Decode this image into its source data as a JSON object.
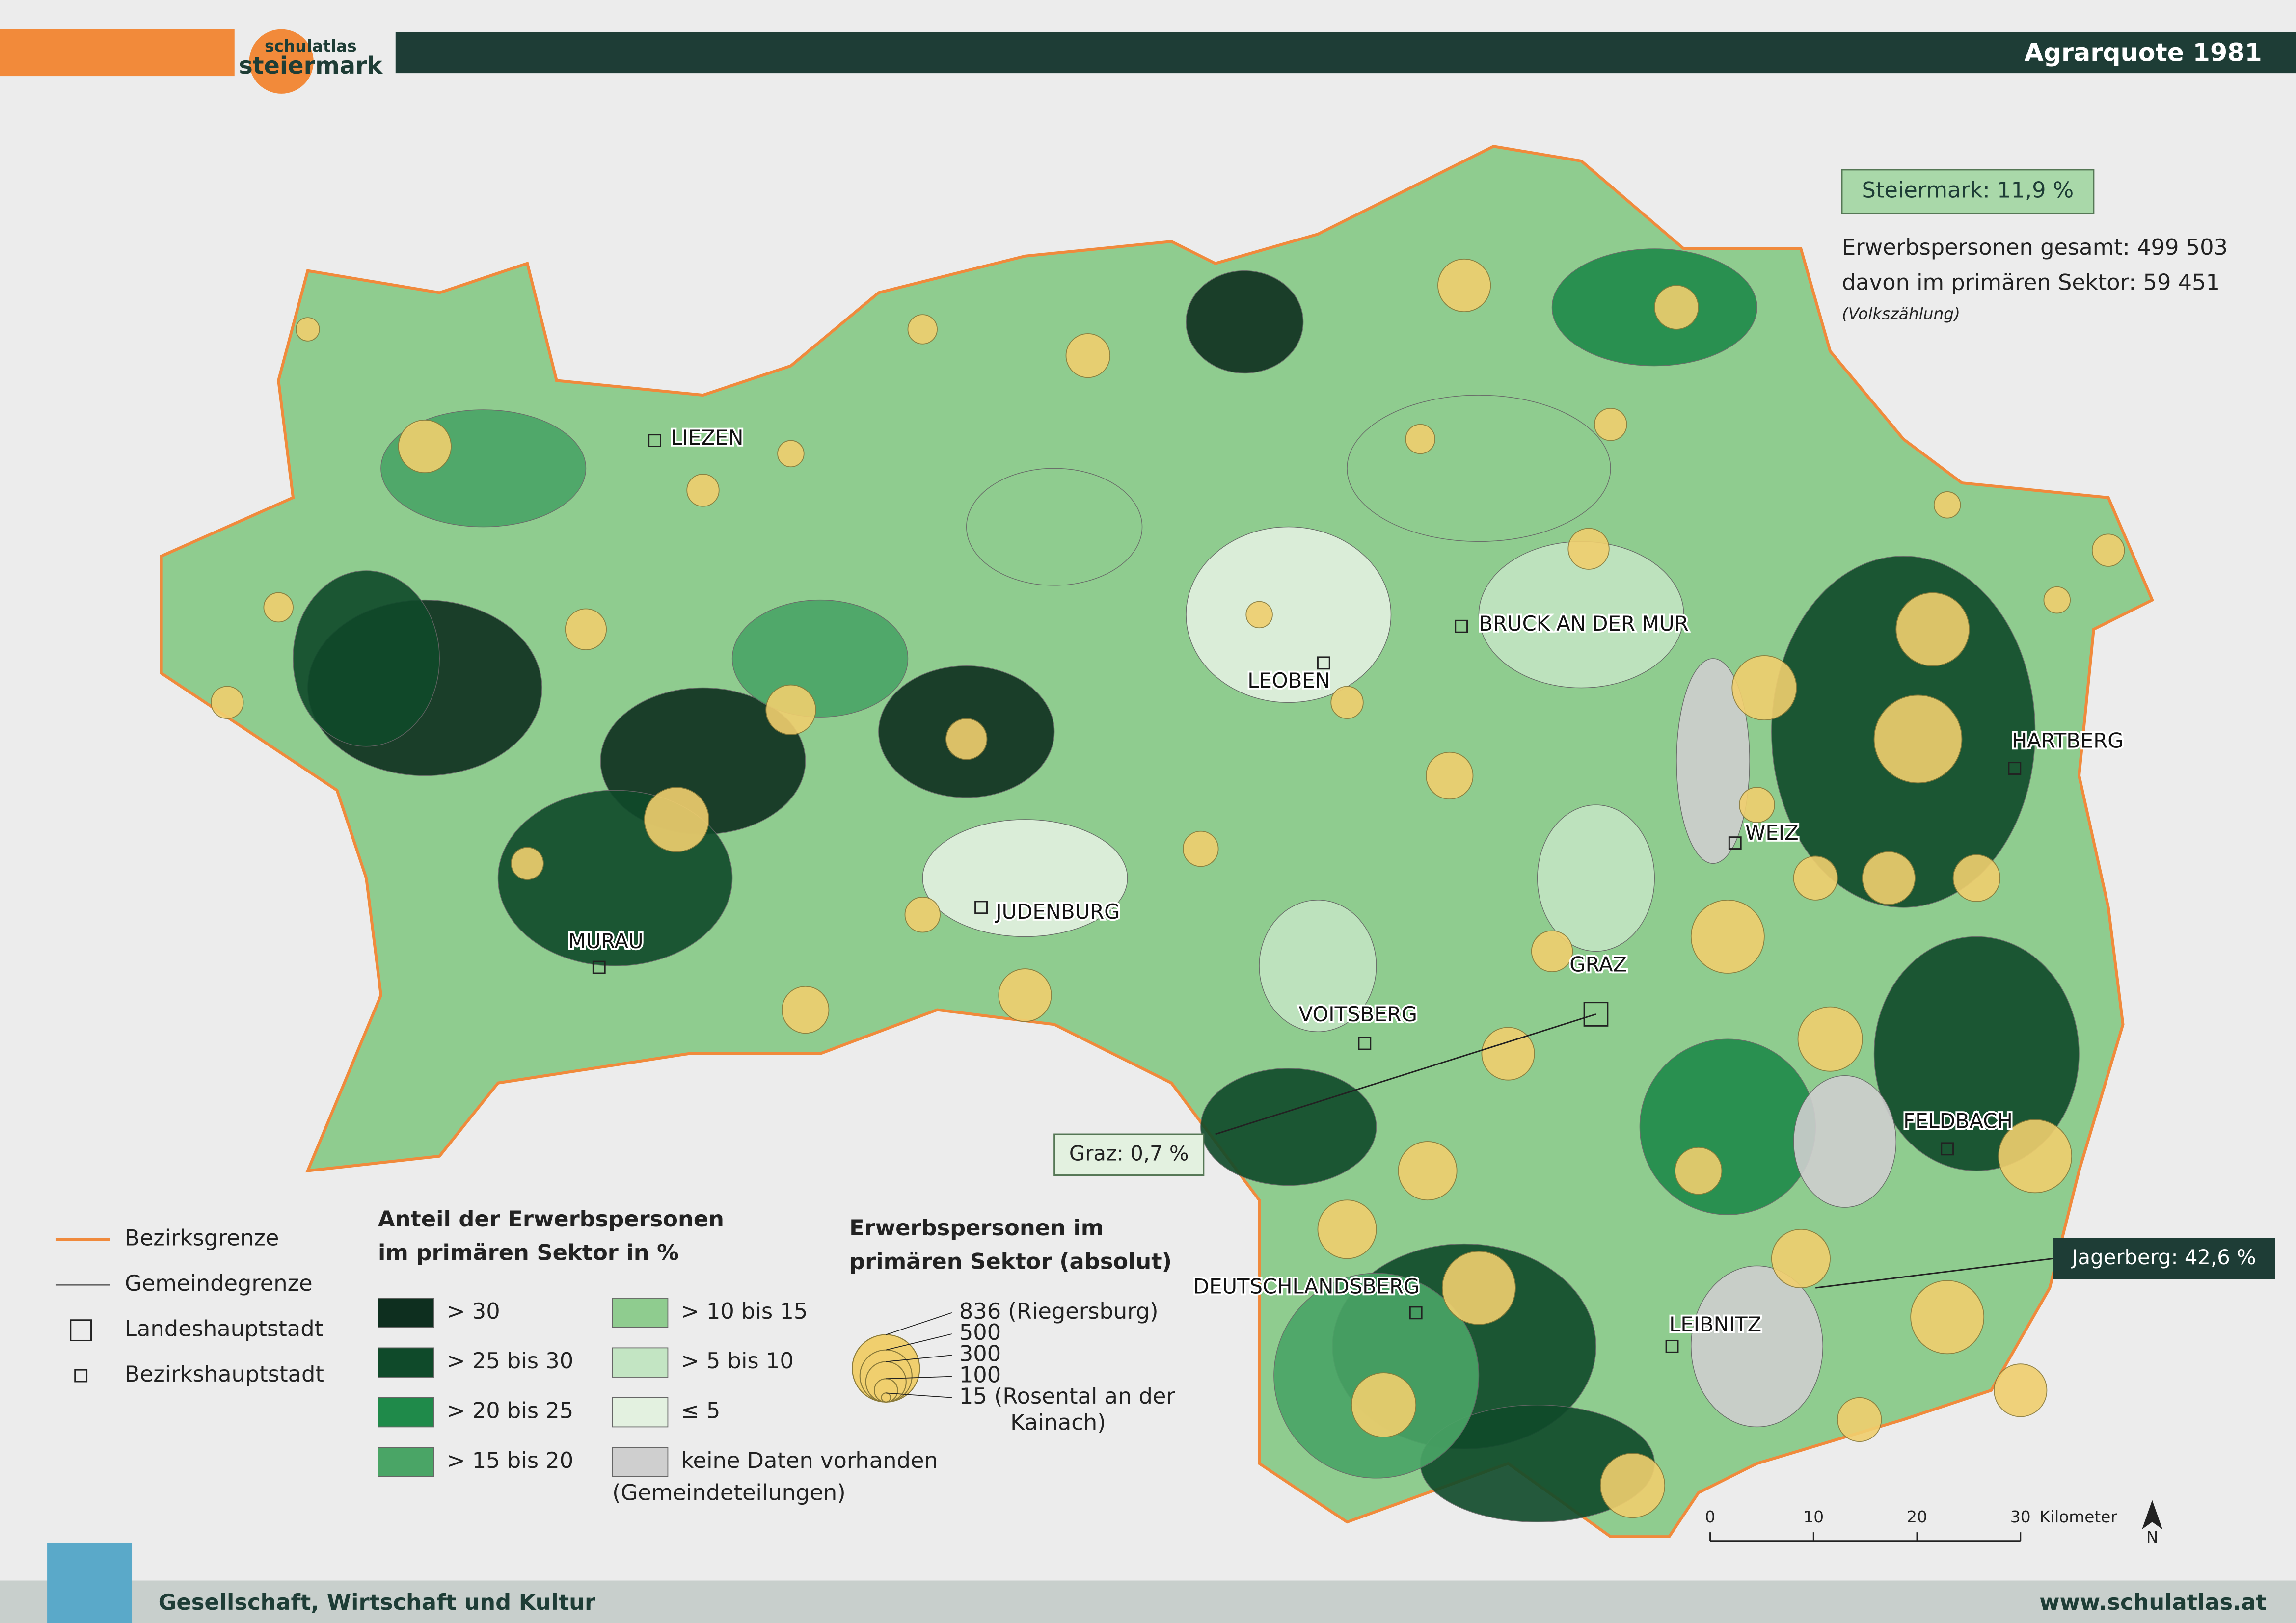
{
  "header": {
    "brand_small": "schulatlas",
    "brand": "steiermark",
    "title": "Agrarquote 1981"
  },
  "summary": {
    "box": "Steiermark: 11,9 %",
    "line1": "Erwerbspersonen gesamt: 499 503",
    "line2": "davon im primären Sektor: 59 451",
    "note": "(Volkszählung)"
  },
  "places": [
    "LIEZEN",
    "LEOBEN",
    "BRUCK AN DER MUR",
    "HARTBERG",
    "WEIZ",
    "JUDENBURG",
    "MURAU",
    "GRAZ",
    "VOITSBERG",
    "FELDBACH",
    "DEUTSCHLANDSBERG",
    "LEIBNITZ"
  ],
  "callouts": [
    "Graz: 0,7 %",
    "Jagerberg: 42,6 %"
  ],
  "line_legend": [
    {
      "label": "Bezirksgrenze",
      "color": "#f08a3c"
    },
    {
      "label": "Gemeindegrenze",
      "color": "#666666"
    },
    {
      "label": "Landeshauptstadt"
    },
    {
      "label": "Bezirkshauptstadt"
    }
  ],
  "class_legend": {
    "title_lines": [
      "Anteil der Erwerbspersonen",
      "im primären Sektor in %"
    ],
    "classes": [
      {
        "label": "> 30",
        "color": "#0e2f1f"
      },
      {
        "label": "> 25 bis 30",
        "color": "#0f4a2a"
      },
      {
        "label": "> 20 bis 25",
        "color": "#1f8a4a"
      },
      {
        "label": "> 15 bis 20",
        "color": "#4aa566"
      },
      {
        "label": "> 10 bis 15",
        "color": "#8fcc8f"
      },
      {
        "label": "> 5 bis 10",
        "color": "#c3e5c3"
      },
      {
        "label": "≤ 5",
        "color": "#e3f1e0"
      },
      {
        "label": "keine Daten vorhanden",
        "label2": "(Gemeindeteilungen)",
        "color": "#cfcfcf"
      }
    ]
  },
  "size_legend": {
    "title_lines": [
      "Erwerbspersonen im",
      "primären Sektor (absolut)"
    ],
    "color": "#f0cf6e",
    "items": [
      {
        "value": 836,
        "note_lines": [
          "(Riegersburg)"
        ]
      },
      {
        "value": 500,
        "note_lines": []
      },
      {
        "value": 300,
        "note_lines": []
      },
      {
        "value": 100,
        "note_lines": []
      },
      {
        "value": 15,
        "note_lines": [
          "(Rosental an der",
          "Kainach)"
        ]
      }
    ]
  },
  "scale": {
    "ticks": [
      0,
      10,
      20,
      30
    ],
    "unit": "Kilometer",
    "north": "N"
  },
  "footer": {
    "section": "Gesellschaft, Wirtschaft und Kultur",
    "url": "www.schulatlas.at"
  }
}
